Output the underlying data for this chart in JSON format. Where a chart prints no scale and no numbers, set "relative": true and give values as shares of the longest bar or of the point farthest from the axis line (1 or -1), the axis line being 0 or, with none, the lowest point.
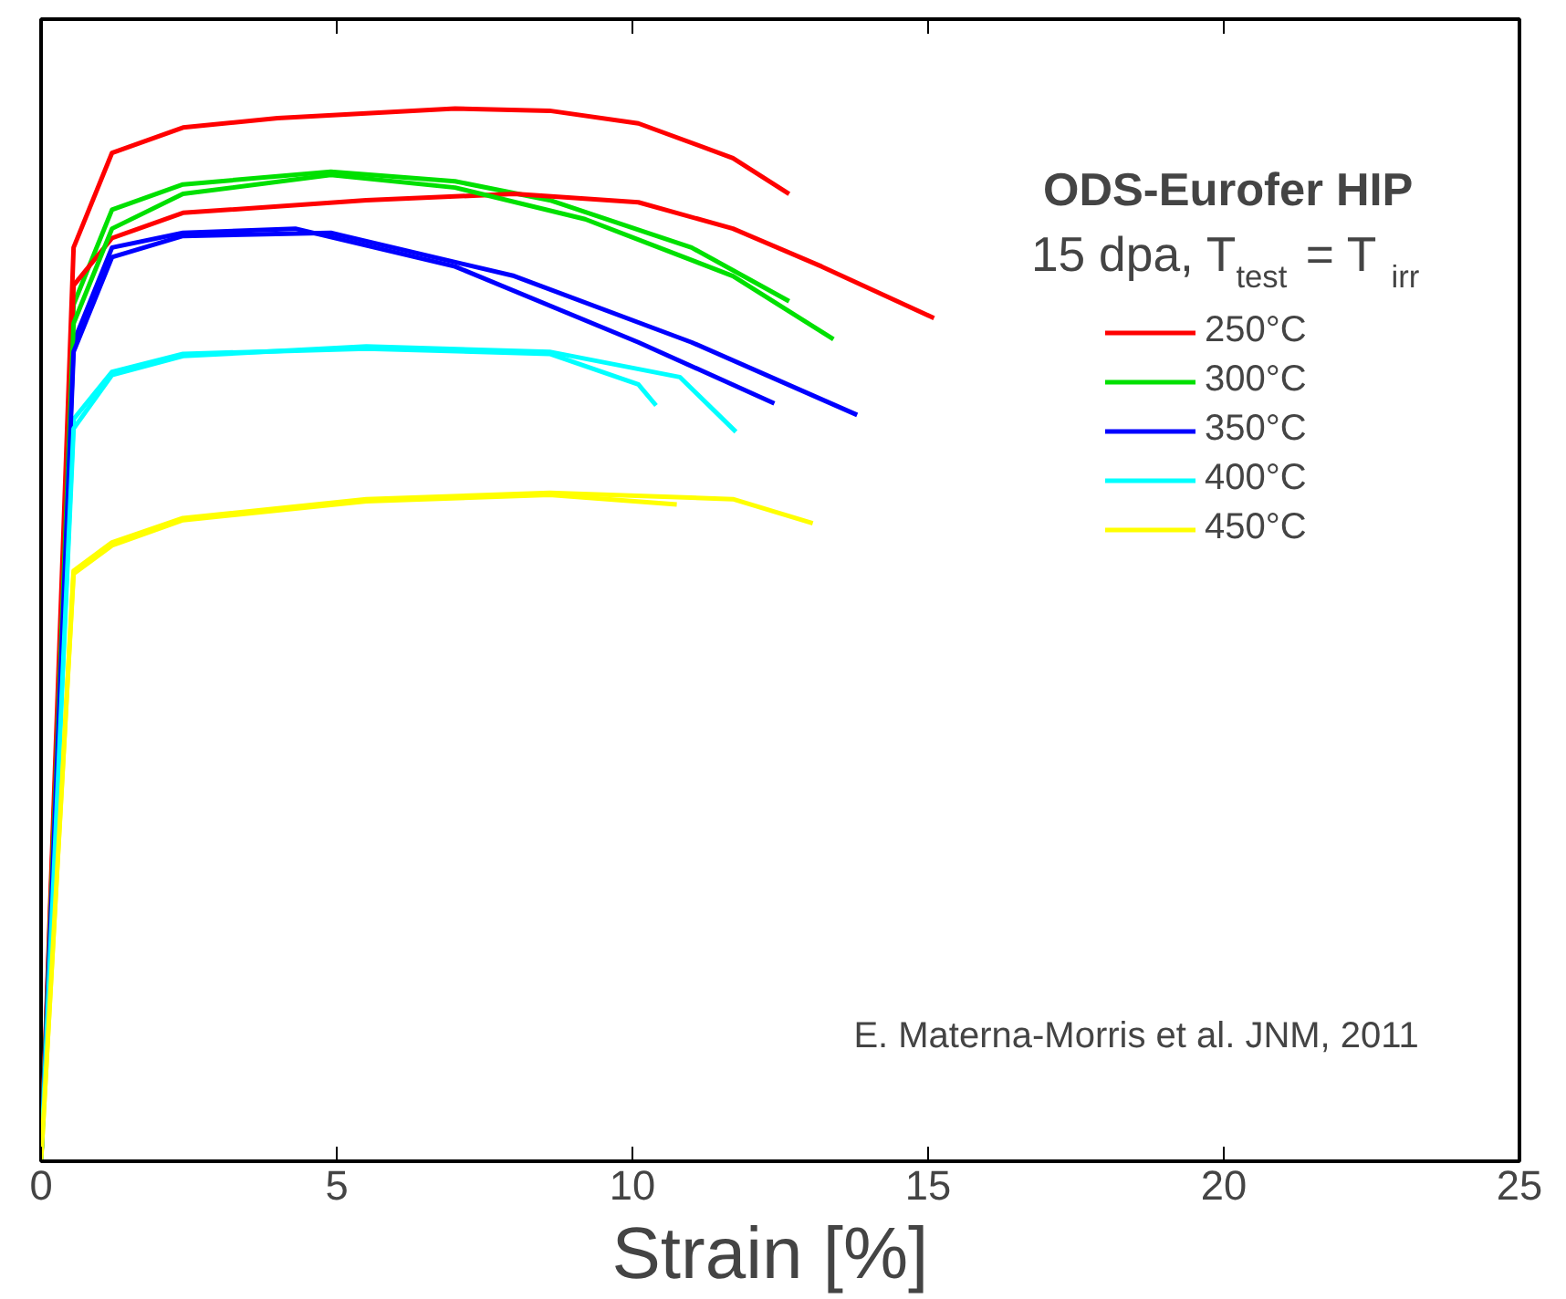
{
  "chart_data": {
    "type": "line",
    "title": "ODS-Eurofer HIP",
    "subtitle": "15 dpa, T$_{test}$ = T$_{irr}$",
    "xlabel": "Strain  [%]",
    "relative": true,
    "xlim": [
      0,
      25
    ],
    "xticks": [
      0,
      5,
      10,
      15,
      20,
      25
    ],
    "grid": false,
    "legend": "right",
    "tick_labels": "x",
    "marker": "none",
    "line_style": "solid",
    "annotations": [
      "E. Materna-Morris et al. JNM, 2011"
    ],
    "series": [
      {
        "name": "250°C",
        "color": "#ff0000",
        "x": [
          0,
          0.55,
          1.2,
          2.4,
          4,
          7,
          8.6,
          10.1,
          11.7,
          12.65
        ],
        "values": [
          0,
          0.868,
          0.958,
          0.982,
          0.991,
          1,
          0.998,
          0.986,
          0.953,
          0.919
        ]
      },
      {
        "name": "300°C",
        "color": "#00e000",
        "x": [
          0,
          0.55,
          1.2,
          2.4,
          4.9,
          7,
          8.6,
          11,
          12.65
        ],
        "values": [
          0,
          0.814,
          0.904,
          0.928,
          0.94,
          0.931,
          0.913,
          0.868,
          0.817
        ]
      },
      {
        "name": "350°C",
        "color": "#0000ff",
        "x": [
          0,
          0.55,
          1.2,
          2.4,
          4.3,
          7,
          10.1,
          12.4
        ],
        "values": [
          0,
          0.778,
          0.868,
          0.882,
          0.886,
          0.85,
          0.778,
          0.72
        ]
      },
      {
        "name": "400°C",
        "color": "#00ffff",
        "x": [
          0,
          0.55,
          1.2,
          2.4,
          5.5,
          8.6,
          10.1,
          10.4
        ],
        "values": [
          0,
          0.705,
          0.75,
          0.767,
          0.772,
          0.767,
          0.738,
          0.718
        ]
      },
      {
        "name": "450°C",
        "color": "#ffff00",
        "x": [
          0,
          0.55,
          1.2,
          2.4,
          5.5,
          8.6,
          11.7,
          13.05
        ],
        "values": [
          0,
          0.561,
          0.588,
          0.611,
          0.629,
          0.635,
          0.629,
          0.606
        ]
      },
      {
        "color": "#ff0000",
        "x": [
          0,
          0.55,
          1.2,
          2.4,
          5.5,
          8,
          10.1,
          11.7,
          13.2,
          15.1
        ],
        "values": [
          0,
          0.832,
          0.877,
          0.901,
          0.913,
          0.919,
          0.911,
          0.886,
          0.85,
          0.801
        ]
      },
      {
        "color": "#00e000",
        "x": [
          0,
          0.55,
          1.2,
          2.4,
          4.9,
          7,
          9.2,
          11.7,
          13.4
        ],
        "values": [
          0,
          0.796,
          0.886,
          0.919,
          0.937,
          0.925,
          0.895,
          0.841,
          0.781
        ]
      },
      {
        "color": "#0000ff",
        "x": [
          0,
          0.55,
          1.2,
          2.4,
          4.9,
          8,
          11,
          13.8
        ],
        "values": [
          0,
          0.769,
          0.859,
          0.879,
          0.882,
          0.841,
          0.778,
          0.709
        ]
      },
      {
        "color": "#00ffff",
        "x": [
          0,
          0.55,
          1.2,
          2.4,
          5.5,
          8.6,
          10.8,
          11.75
        ],
        "values": [
          0,
          0.696,
          0.747,
          0.765,
          0.774,
          0.769,
          0.745,
          0.693
        ]
      },
      {
        "color": "#ffff00",
        "x": [
          0,
          0.55,
          1.2,
          2.4,
          5.5,
          8.6,
          10.75
        ],
        "values": [
          0,
          0.558,
          0.585,
          0.609,
          0.627,
          0.633,
          0.624
        ]
      }
    ]
  }
}
